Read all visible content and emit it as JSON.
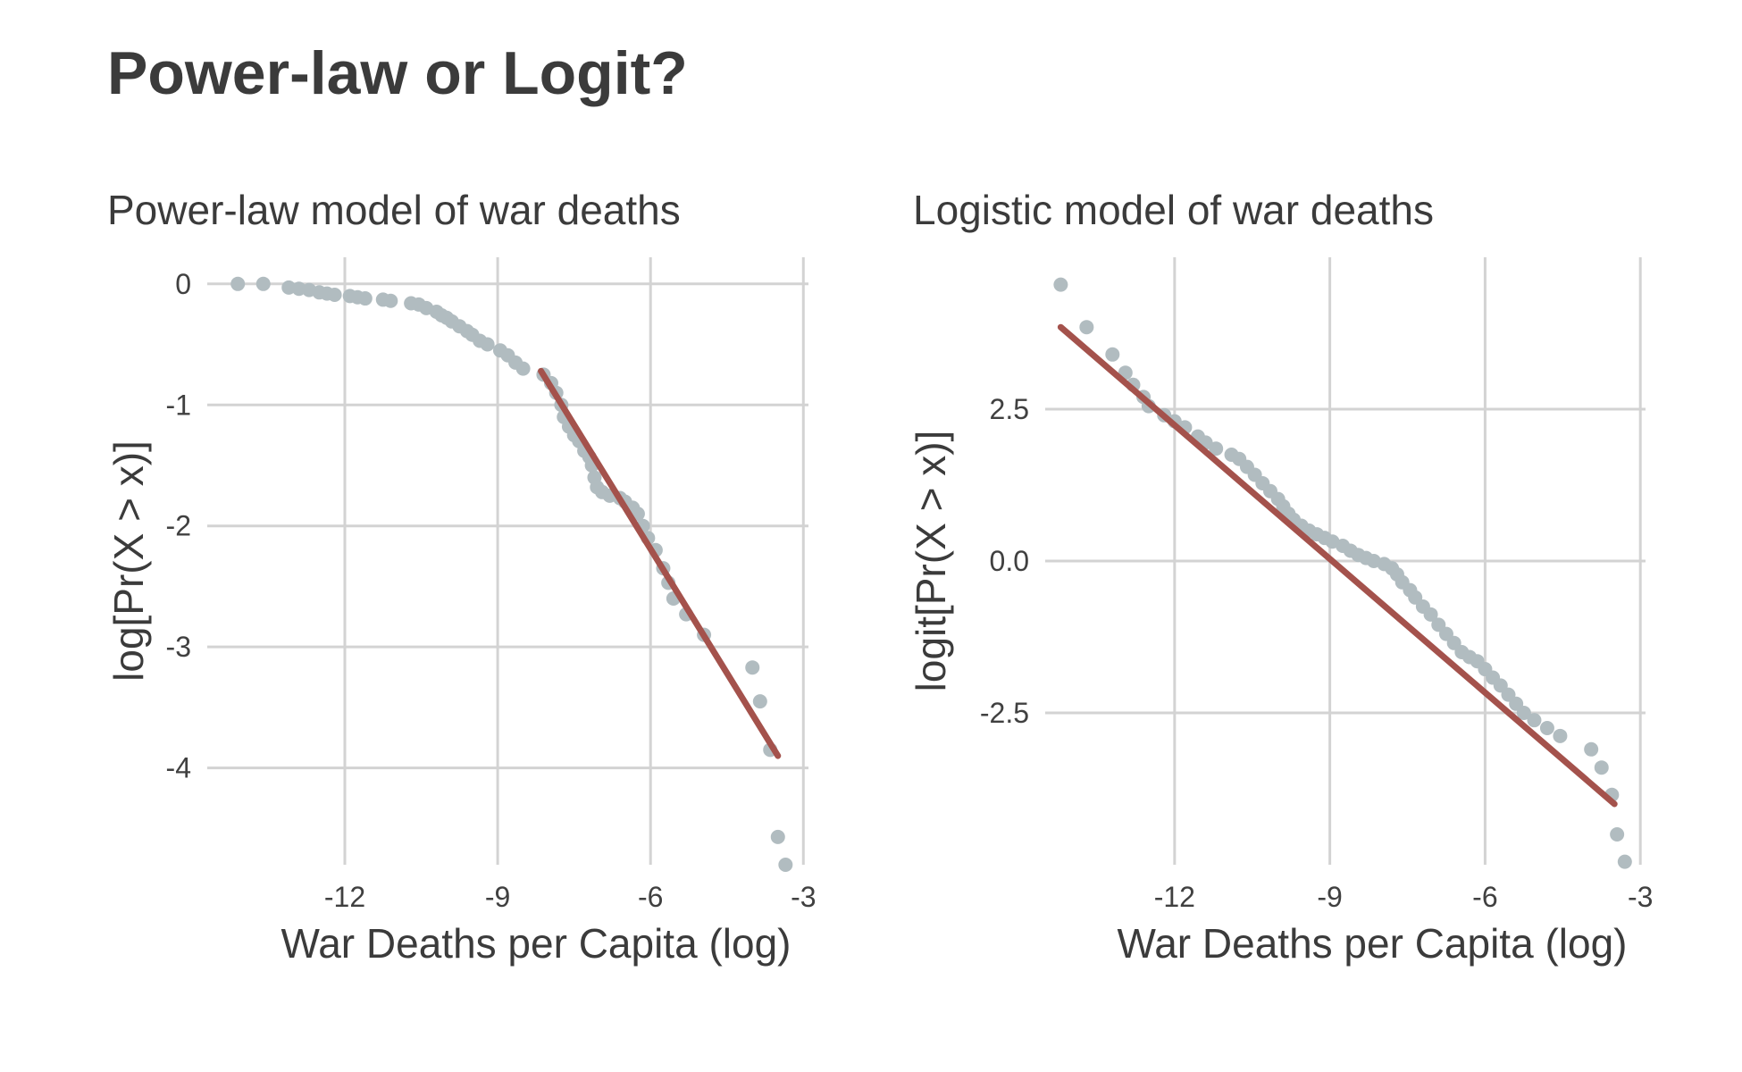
{
  "title": "Power-law or Logit?",
  "chart_data": [
    {
      "type": "scatter",
      "subtitle": "Power-law model of war deaths",
      "xlabel": "War Deaths per Capita (log)",
      "ylabel": "log[Pr(X > x)]",
      "xlim": [
        -14.7,
        -2.9
      ],
      "ylim": [
        -4.8,
        0.22
      ],
      "xticks": [
        -12,
        -9,
        -6,
        -3
      ],
      "xtick_labels": [
        "-12",
        "-9",
        "-6",
        "-3"
      ],
      "yticks": [
        0,
        -1,
        -2,
        -3,
        -4
      ],
      "ytick_labels": [
        "0",
        "-1",
        "-2",
        "-3",
        "-4"
      ],
      "grid": true,
      "point_color": "#b1bcc0",
      "line_color": "#a4524c",
      "points": [
        [
          -14.1,
          0.0
        ],
        [
          -13.6,
          0.0
        ],
        [
          -13.1,
          -0.03
        ],
        [
          -12.9,
          -0.04
        ],
        [
          -12.7,
          -0.05
        ],
        [
          -12.5,
          -0.07
        ],
        [
          -12.35,
          -0.08
        ],
        [
          -12.2,
          -0.09
        ],
        [
          -11.9,
          -0.1
        ],
        [
          -11.75,
          -0.11
        ],
        [
          -11.6,
          -0.12
        ],
        [
          -11.25,
          -0.13
        ],
        [
          -11.1,
          -0.14
        ],
        [
          -10.7,
          -0.16
        ],
        [
          -10.55,
          -0.17
        ],
        [
          -10.4,
          -0.2
        ],
        [
          -10.2,
          -0.23
        ],
        [
          -10.1,
          -0.26
        ],
        [
          -10.0,
          -0.28
        ],
        [
          -9.9,
          -0.31
        ],
        [
          -9.75,
          -0.35
        ],
        [
          -9.6,
          -0.39
        ],
        [
          -9.5,
          -0.42
        ],
        [
          -9.35,
          -0.47
        ],
        [
          -9.2,
          -0.5
        ],
        [
          -8.95,
          -0.55
        ],
        [
          -8.8,
          -0.59
        ],
        [
          -8.65,
          -0.65
        ],
        [
          -8.5,
          -0.7
        ],
        [
          -8.1,
          -0.75
        ],
        [
          -7.95,
          -0.82
        ],
        [
          -7.85,
          -0.9
        ],
        [
          -7.75,
          -1.0
        ],
        [
          -7.7,
          -1.1
        ],
        [
          -7.6,
          -1.18
        ],
        [
          -7.5,
          -1.25
        ],
        [
          -7.4,
          -1.3
        ],
        [
          -7.3,
          -1.38
        ],
        [
          -7.2,
          -1.43
        ],
        [
          -7.15,
          -1.5
        ],
        [
          -7.1,
          -1.6
        ],
        [
          -7.05,
          -1.68
        ],
        [
          -6.95,
          -1.72
        ],
        [
          -6.8,
          -1.75
        ],
        [
          -6.6,
          -1.77
        ],
        [
          -6.5,
          -1.8
        ],
        [
          -6.35,
          -1.85
        ],
        [
          -6.25,
          -1.9
        ],
        [
          -6.15,
          -2.0
        ],
        [
          -6.05,
          -2.1
        ],
        [
          -5.9,
          -2.2
        ],
        [
          -5.75,
          -2.35
        ],
        [
          -5.65,
          -2.47
        ],
        [
          -5.55,
          -2.6
        ],
        [
          -5.3,
          -2.73
        ],
        [
          -4.95,
          -2.9
        ],
        [
          -4.0,
          -3.17
        ],
        [
          -3.85,
          -3.45
        ],
        [
          -3.65,
          -3.85
        ],
        [
          -3.5,
          -4.57
        ],
        [
          -3.35,
          -4.8
        ]
      ],
      "fit_line": [
        [
          -8.15,
          -0.72
        ],
        [
          -3.5,
          -3.9
        ]
      ]
    },
    {
      "type": "scatter",
      "subtitle": "Logistic model of war deaths",
      "xlabel": "War Deaths per Capita (log)",
      "ylabel": "logit[Pr(X > x)]",
      "xlim": [
        -14.5,
        -2.9
      ],
      "ylim": [
        -5.0,
        5.0
      ],
      "xticks": [
        -12,
        -9,
        -6,
        -3
      ],
      "xtick_labels": [
        "-12",
        "-9",
        "-6",
        "-3"
      ],
      "yticks": [
        2.5,
        0.0,
        -2.5
      ],
      "ytick_labels": [
        "2.5",
        "0.0",
        "-2.5"
      ],
      "grid": true,
      "point_color": "#b1bcc0",
      "line_color": "#a4524c",
      "points": [
        [
          -14.2,
          4.55
        ],
        [
          -13.7,
          3.85
        ],
        [
          -13.2,
          3.4
        ],
        [
          -12.95,
          3.1
        ],
        [
          -12.8,
          2.9
        ],
        [
          -12.6,
          2.7
        ],
        [
          -12.5,
          2.55
        ],
        [
          -12.2,
          2.4
        ],
        [
          -12.0,
          2.3
        ],
        [
          -11.8,
          2.2
        ],
        [
          -11.55,
          2.05
        ],
        [
          -11.4,
          1.95
        ],
        [
          -11.2,
          1.85
        ],
        [
          -10.9,
          1.75
        ],
        [
          -10.75,
          1.68
        ],
        [
          -10.6,
          1.55
        ],
        [
          -10.45,
          1.42
        ],
        [
          -10.3,
          1.28
        ],
        [
          -10.15,
          1.15
        ],
        [
          -10.0,
          1.02
        ],
        [
          -9.9,
          0.9
        ],
        [
          -9.8,
          0.78
        ],
        [
          -9.7,
          0.68
        ],
        [
          -9.55,
          0.58
        ],
        [
          -9.4,
          0.5
        ],
        [
          -9.25,
          0.44
        ],
        [
          -9.1,
          0.38
        ],
        [
          -8.95,
          0.32
        ],
        [
          -8.75,
          0.25
        ],
        [
          -8.6,
          0.17
        ],
        [
          -8.45,
          0.1
        ],
        [
          -8.3,
          0.05
        ],
        [
          -8.15,
          0.0
        ],
        [
          -7.95,
          -0.05
        ],
        [
          -7.8,
          -0.12
        ],
        [
          -7.7,
          -0.22
        ],
        [
          -7.6,
          -0.35
        ],
        [
          -7.45,
          -0.48
        ],
        [
          -7.35,
          -0.6
        ],
        [
          -7.2,
          -0.75
        ],
        [
          -7.05,
          -0.88
        ],
        [
          -6.9,
          -1.05
        ],
        [
          -6.75,
          -1.2
        ],
        [
          -6.6,
          -1.35
        ],
        [
          -6.45,
          -1.5
        ],
        [
          -6.3,
          -1.58
        ],
        [
          -6.15,
          -1.65
        ],
        [
          -6.0,
          -1.78
        ],
        [
          -5.85,
          -1.92
        ],
        [
          -5.7,
          -2.05
        ],
        [
          -5.55,
          -2.2
        ],
        [
          -5.4,
          -2.35
        ],
        [
          -5.25,
          -2.5
        ],
        [
          -5.05,
          -2.62
        ],
        [
          -4.8,
          -2.75
        ],
        [
          -4.55,
          -2.88
        ],
        [
          -3.95,
          -3.1
        ],
        [
          -3.75,
          -3.4
        ],
        [
          -3.55,
          -3.85
        ],
        [
          -3.45,
          -4.5
        ],
        [
          -3.3,
          -4.95
        ]
      ],
      "fit_line": [
        [
          -14.2,
          3.85
        ],
        [
          -3.5,
          -4.0
        ]
      ]
    }
  ]
}
